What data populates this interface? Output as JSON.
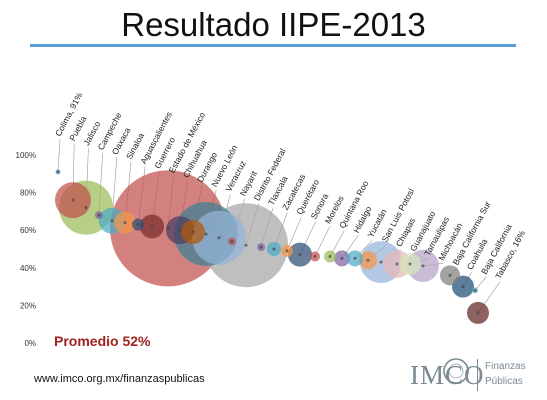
{
  "slide": {
    "title": "Resultado IIPE-2013",
    "average_label": "Promedio 52%",
    "website": "www.imco.org.mx/finanzaspublicas",
    "logo_brand": "IMCO",
    "logo_line1": "Finanzas",
    "logo_line2": "Públicas"
  },
  "chart_data": {
    "type": "scatter",
    "title": "Resultado IIPE-2013",
    "y_ticks": [
      "0%",
      "20%",
      "40%",
      "60%",
      "80%",
      "100%"
    ],
    "ylim": [
      0,
      100
    ],
    "grid": false,
    "points": [
      {
        "label": "Colima, 91%",
        "value": 91,
        "color": "#5b9bd5"
      },
      {
        "label": "Puebla",
        "value": 76,
        "color": "#c0504d"
      },
      {
        "label": "Jalisco",
        "value": 72,
        "color": "#9bbb59"
      },
      {
        "label": "Campeche",
        "value": 68,
        "color": "#8064a2"
      },
      {
        "label": "Oaxaca",
        "value": 65,
        "color": "#4bacc6"
      },
      {
        "label": "Sinaloa",
        "value": 64,
        "color": "#f79646"
      },
      {
        "label": "Aguascalientes",
        "value": 63,
        "color": "#2c4d75"
      },
      {
        "label": "Guerrero",
        "value": 62,
        "color": "#772c2a"
      },
      {
        "label": "Estado de México",
        "value": 61,
        "color": "#c0504d"
      },
      {
        "label": "Chihuahua",
        "value": 60,
        "color": "#4d3b62"
      },
      {
        "label": "Durango",
        "value": 59,
        "color": "#b65708"
      },
      {
        "label": "Nuevo León",
        "value": 58,
        "color": "#3b7f94"
      },
      {
        "label": "Veracruz",
        "value": 56,
        "color": "#95b3d7"
      },
      {
        "label": "Nayarit",
        "value": 54,
        "color": "#c0504d"
      },
      {
        "label": "Distrito Federal",
        "value": 52,
        "color": "#a6a6a6"
      },
      {
        "label": "Tlaxcala",
        "value": 51,
        "color": "#8064a2"
      },
      {
        "label": "Zacatecas",
        "value": 50,
        "color": "#4bacc6"
      },
      {
        "label": "Querétaro",
        "value": 49,
        "color": "#f79646"
      },
      {
        "label": "Sonora",
        "value": 47,
        "color": "#2c4d75"
      },
      {
        "label": "Morelos",
        "value": 46,
        "color": "#c0504d"
      },
      {
        "label": "Quintana Roo",
        "value": 46,
        "color": "#9bbb59"
      },
      {
        "label": "Hidalgo",
        "value": 45,
        "color": "#8064a2"
      },
      {
        "label": "Yucatán",
        "value": 45,
        "color": "#4bacc6"
      },
      {
        "label": "San Luis Potosí",
        "value": 44,
        "color": "#f79646"
      },
      {
        "label": "Chiapas",
        "value": 43,
        "color": "#95b3d7"
      },
      {
        "label": "Guanajuato",
        "value": 42,
        "color": "#e6b9b8"
      },
      {
        "label": "Tamaulipas",
        "value": 42,
        "color": "#d7e4bd"
      },
      {
        "label": "Michoacán",
        "value": 41,
        "color": "#b3a2c7"
      },
      {
        "label": "Baja California Sur",
        "value": 36,
        "color": "#7f7f7f"
      },
      {
        "label": "Coahuila",
        "value": 30,
        "color": "#1f4e79"
      },
      {
        "label": "Baja California",
        "value": 28,
        "color": "#4bacc6"
      },
      {
        "label": "Tabasco, 16%",
        "value": 16,
        "color": "#632523"
      }
    ]
  }
}
